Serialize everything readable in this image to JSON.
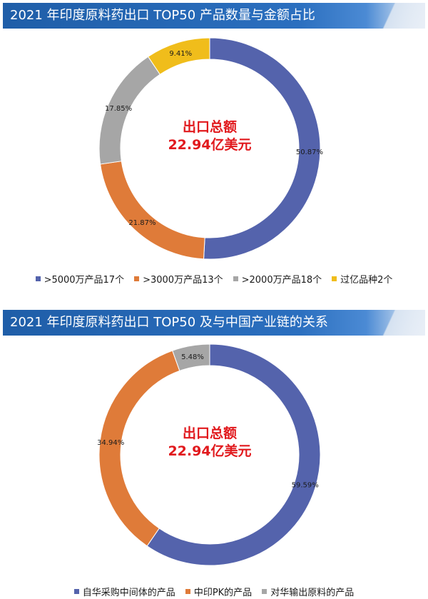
{
  "charts": [
    {
      "header": "2021 年印度原料药出口 TOP50 产品数量与金额占比",
      "center_line1": "出口总额",
      "center_line2": "22.94亿美元"
    },
    {
      "header": "2021 年印度原料药出口 TOP50 及与中国产业链的关系",
      "center_line1": "出口总额",
      "center_line2": "22.94亿美元"
    }
  ],
  "chart_data": [
    {
      "type": "pie",
      "title": "2021 年印度原料药出口 TOP50 产品数量与金额占比",
      "donut": true,
      "series": [
        {
          "name": ">5000万产品17个",
          "value": 50.87,
          "label": "50.87%",
          "color": "#5463ac"
        },
        {
          "name": ">3000万产品13个",
          "value": 21.87,
          "label": "21.87%",
          "color": "#df7b39"
        },
        {
          "name": ">2000万产品18个",
          "value": 17.85,
          "label": "17.85%",
          "color": "#a6a6a6"
        },
        {
          "name": "过亿品种2个",
          "value": 9.41,
          "label": "9.41%",
          "color": "#f0bd1b"
        }
      ],
      "legend_position": "bottom"
    },
    {
      "type": "pie",
      "title": "2021 年印度原料药出口 TOP50 及与中国产业链的关系",
      "donut": true,
      "series": [
        {
          "name": "自华采购中间体的产品",
          "value": 59.59,
          "label": "59.59%",
          "color": "#5463ac"
        },
        {
          "name": "中印PK的产品",
          "value": 34.94,
          "label": "34.94%",
          "color": "#df7b39"
        },
        {
          "name": "对华输出原料的产品",
          "value": 5.48,
          "label": "5.48%",
          "color": "#a6a6a6"
        }
      ],
      "legend_position": "bottom"
    }
  ]
}
